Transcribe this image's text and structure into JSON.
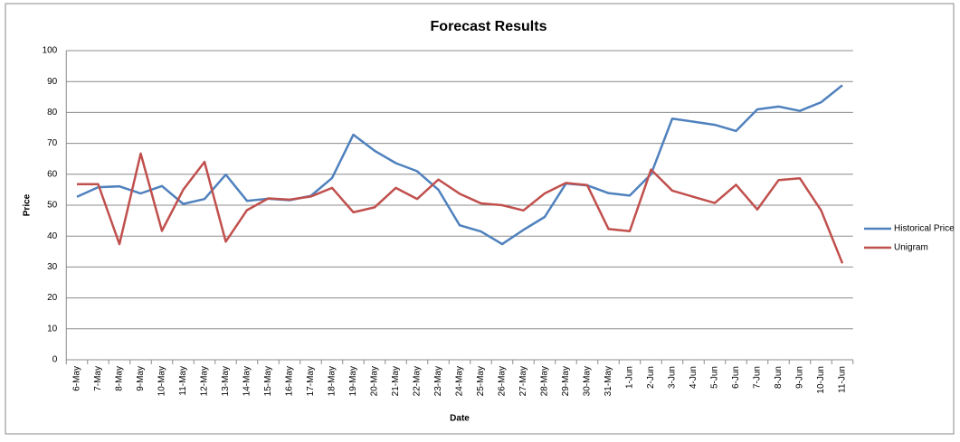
{
  "chart_data": {
    "type": "line",
    "title": "Forecast Results",
    "x_label": "Date",
    "y_label": "Price",
    "categories": [
      "6-May",
      "7-May",
      "8-May",
      "9-May",
      "10-May",
      "11-May",
      "12-May",
      "13-May",
      "14-May",
      "15-May",
      "16-May",
      "17-May",
      "18-May",
      "19-May",
      "20-May",
      "21-May",
      "22-May",
      "23-May",
      "24-May",
      "25-May",
      "26-May",
      "27-May",
      "28-May",
      "29-May",
      "30-May",
      "31-May",
      "1-Jun",
      "2-Jun",
      "3-Jun",
      "4-Jun",
      "5-Jun",
      "6-Jun",
      "7-Jun",
      "8-Jun",
      "9-Jun",
      "10-Jun",
      "11-Jun"
    ],
    "series": [
      {
        "name": "Historical Price",
        "color": "#4f81bd",
        "values": [
          52.7,
          55.8,
          56.1,
          53.8,
          56.2,
          50.4,
          52.0,
          59.9,
          51.4,
          52.1,
          51.6,
          53.0,
          58.8,
          72.8,
          67.6,
          63.6,
          61.0,
          55.0,
          43.5,
          41.5,
          37.4,
          42.0,
          46.2,
          57.0,
          56.4,
          53.9,
          53.1,
          60.0,
          78.0,
          77.0,
          76.0,
          74.0,
          81.0,
          81.9,
          80.5,
          83.3,
          88.8
        ]
      },
      {
        "name": "Unigram",
        "color": "#c0504d",
        "values": [
          56.8,
          56.8,
          37.4,
          66.7,
          41.7,
          55.0,
          64.0,
          38.2,
          48.4,
          52.2,
          51.8,
          52.8,
          55.6,
          47.7,
          49.3,
          55.6,
          52.0,
          58.3,
          53.7,
          50.6,
          50.0,
          48.3,
          53.8,
          57.2,
          56.5,
          42.3,
          41.6,
          61.5,
          54.7,
          52.7,
          50.7,
          56.6,
          48.6,
          58.1,
          58.7,
          48.3,
          31.2
        ]
      }
    ],
    "ylim": [
      0,
      100
    ],
    "yticks": [
      0,
      10,
      20,
      30,
      40,
      50,
      60,
      70,
      80,
      90,
      100
    ],
    "grid": true,
    "legend": "right"
  }
}
